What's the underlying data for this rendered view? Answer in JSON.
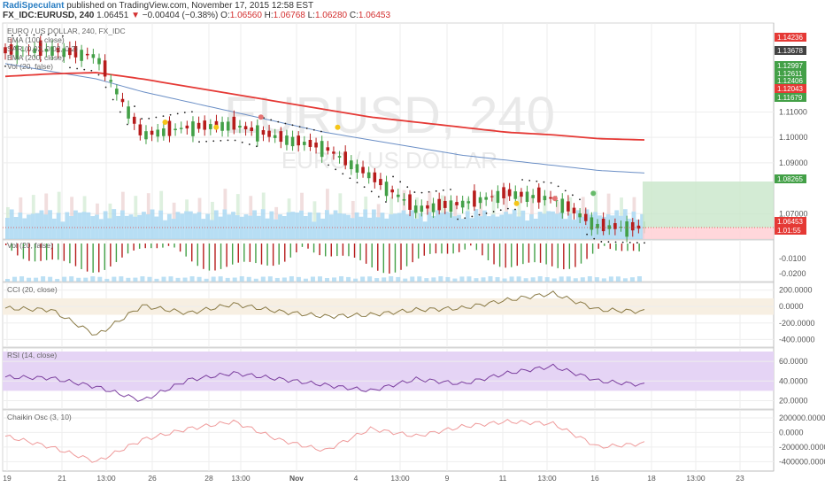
{
  "header": {
    "author": "RadiSpeculant",
    "published": "published on TradingView.com, November 17, 2015 12:58 EST",
    "symbol": "FX_IDC:EURUSD, 240",
    "last": "1.06451",
    "arrow": "▼",
    "change": "−0.00404 (−0.38%)",
    "o_label": "O:",
    "o_value": "1.06560",
    "h_label": "H:",
    "h_value": "1.06768",
    "l_label": "L:",
    "l_value": "1.06280",
    "c_label": "C:",
    "c_value": "1.06453"
  },
  "main_pane": {
    "watermark_symbol": "EURUSD, 240",
    "watermark_name": "EURO / US DOLLAR",
    "legend": [
      "EURO / US DOLLAR, 240, FX_IDC",
      "EMA (100, close)",
      "SAR (0.02, 0.02, 0.2)",
      "EMA (200, close)",
      "Vol (20, false)"
    ],
    "y_ticks": [
      "1.11000",
      "1.10000",
      "1.09000",
      "1.07000"
    ],
    "price_tags": [
      {
        "text": "1.14236",
        "color": "#e53935"
      },
      {
        "text": "1.13678",
        "color": "#424242"
      },
      {
        "text": "1.12997",
        "color": "#43a047"
      },
      {
        "text": "1.12611",
        "color": "#43a047"
      },
      {
        "text": "1.12406",
        "color": "#43a047"
      },
      {
        "text": "1.12043",
        "color": "#e53935"
      },
      {
        "text": "1.11679",
        "color": "#43a047"
      },
      {
        "text": "1.08265",
        "color": "#43a047"
      },
      {
        "text": "1.06453",
        "color": "#e53935"
      },
      {
        "text": "1.01:55",
        "color": "#e53935"
      }
    ],
    "y_range": [
      1.06,
      1.145
    ]
  },
  "panes": {
    "macd_label": "Vol (20, false)",
    "macd_ticks": [
      "-0.0100",
      "-0.0200"
    ],
    "cci_label": "CCI (20, close)",
    "cci_ticks": [
      "200.0000",
      "0.0000",
      "-200.0000",
      "-400.0000"
    ],
    "rsi_label": "RSI (14, close)",
    "rsi_ticks": [
      "60.0000",
      "40.0000",
      "20.0000"
    ],
    "chaikin_label": "Chaikin Osc (3, 10)",
    "chaikin_ticks": [
      "200000.0000",
      "0.0000",
      "-200000.0000",
      "-400000.0000"
    ]
  },
  "x_axis": {
    "labels": [
      "19",
      "21",
      "13:00",
      "26",
      "28",
      "13:00",
      "Nov",
      "4",
      "13:00",
      "9",
      "11",
      "13:00",
      "16",
      "18",
      "13:00",
      "23"
    ]
  },
  "colors": {
    "ema100": "#6b8fc6",
    "ema200": "#e53935",
    "up": "#43a047",
    "down": "#b71c1c",
    "sar": "#222222",
    "rsi_line": "#7b3f9e",
    "rsi_band": "#e5d4f5",
    "cci_line": "#8a7a45",
    "cci_band": "#f7efe2",
    "chaikin_line": "#ef9a9a",
    "volume": "#9fd3f0"
  },
  "chart_data": {
    "type": "line",
    "title": "EURO / US DOLLAR, 240, FX_IDC",
    "xlabel": "",
    "ylabel": "",
    "x_categories": [
      "19",
      "21",
      "13:00",
      "26",
      "28",
      "13:00",
      "Nov",
      "4",
      "13:00",
      "9",
      "11",
      "13:00",
      "16",
      "18",
      "13:00",
      "23"
    ],
    "ylim": [
      1.06,
      1.145
    ],
    "series": [
      {
        "name": "EURO / US DOLLAR, 240, FX_IDC",
        "values": [
          1.134,
          1.1345,
          1.132,
          1.101,
          1.104,
          1.105,
          1.1,
          1.096,
          1.085,
          1.072,
          1.074,
          1.078,
          1.076,
          1.065,
          1.0645
        ]
      },
      {
        "name": "EMA (100, close)",
        "values": [
          1.129,
          1.126,
          1.123,
          1.118,
          1.114,
          1.11,
          1.106,
          1.102,
          1.099,
          1.096,
          1.093,
          1.091,
          1.089,
          1.087,
          1.086
        ]
      },
      {
        "name": "EMA (200, close)",
        "values": [
          1.124,
          1.125,
          1.1255,
          1.123,
          1.12,
          1.117,
          1.114,
          1.111,
          1.108,
          1.106,
          1.104,
          1.102,
          1.101,
          1.0995,
          1.099
        ]
      }
    ],
    "indicators": {
      "rsi": [
        44,
        43,
        34,
        20,
        41,
        48,
        42,
        36,
        30,
        42,
        37,
        48,
        55,
        40,
        36
      ],
      "cci": [
        -20,
        -40,
        -350,
        10,
        -80,
        30,
        -60,
        -120,
        -100,
        -40,
        -20,
        80,
        160,
        -40,
        -60
      ],
      "chaikin": [
        -50000,
        -200000,
        -400000,
        -100000,
        50000,
        150000,
        -100000,
        -250000,
        50000,
        -50000,
        80000,
        150000,
        120000,
        -200000,
        -150000
      ]
    }
  }
}
